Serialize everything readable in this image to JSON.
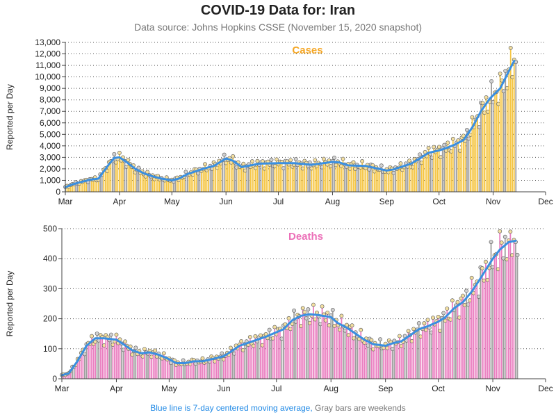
{
  "title": "COVID-19 Data for: Iran",
  "subtitle": "Data source: Johns Hopkins CSSE (November 15, 2020 snapshot)",
  "footer": {
    "blue_text": "Blue line is 7-day centered moving average,",
    "gray_text": "Gray bars are weekends"
  },
  "colors": {
    "cases_bar": "#f5c542",
    "deaths_bar": "#ea7ec0",
    "moving_avg": "#3a8fe0",
    "cases_title": "#f5a623",
    "deaths_title": "#ec6fb8",
    "weekend_bar": "#9e9e9e"
  },
  "chart_data": [
    {
      "type": "bar",
      "title": "Cases",
      "ylabel": "Reported per Day",
      "xlabel": "",
      "ylim": [
        0,
        13000
      ],
      "yticks": [
        "0",
        "1,000",
        "2,000",
        "3,000",
        "4,000",
        "5,000",
        "6,000",
        "7,000",
        "8,000",
        "9,000",
        "10,000",
        "11,000",
        "12,000",
        "13,000"
      ],
      "ytick_values": [
        0,
        1000,
        2000,
        3000,
        4000,
        5000,
        6000,
        7000,
        8000,
        9000,
        10000,
        11000,
        12000,
        13000
      ],
      "xticks": [
        "Mar",
        "Apr",
        "May",
        "Jun",
        "Jul",
        "Aug",
        "Sep",
        "Oct",
        "Nov",
        "Dec"
      ],
      "grid": "horizontal dotted",
      "x_range": [
        "2020-03-01",
        "2020-12-01"
      ],
      "moving_average_points": [
        [
          "2020-03-01",
          400
        ],
        [
          "2020-03-05",
          650
        ],
        [
          "2020-03-10",
          850
        ],
        [
          "2020-03-15",
          1050
        ],
        [
          "2020-03-20",
          1150
        ],
        [
          "2020-03-25",
          2200
        ],
        [
          "2020-03-29",
          2950
        ],
        [
          "2020-04-01",
          3000
        ],
        [
          "2020-04-05",
          2600
        ],
        [
          "2020-04-10",
          2000
        ],
        [
          "2020-04-15",
          1600
        ],
        [
          "2020-04-20",
          1350
        ],
        [
          "2020-04-25",
          1150
        ],
        [
          "2020-05-01",
          1000
        ],
        [
          "2020-05-05",
          1150
        ],
        [
          "2020-05-10",
          1550
        ],
        [
          "2020-05-15",
          1800
        ],
        [
          "2020-05-20",
          2050
        ],
        [
          "2020-05-25",
          2250
        ],
        [
          "2020-06-01",
          2900
        ],
        [
          "2020-06-05",
          2700
        ],
        [
          "2020-06-10",
          2150
        ],
        [
          "2020-06-15",
          2300
        ],
        [
          "2020-06-20",
          2450
        ],
        [
          "2020-07-01",
          2500
        ],
        [
          "2020-07-10",
          2500
        ],
        [
          "2020-07-20",
          2350
        ],
        [
          "2020-08-01",
          2600
        ],
        [
          "2020-08-05",
          2550
        ],
        [
          "2020-08-10",
          2300
        ],
        [
          "2020-08-20",
          2250
        ],
        [
          "2020-09-01",
          1850
        ],
        [
          "2020-09-05",
          1950
        ],
        [
          "2020-09-10",
          2200
        ],
        [
          "2020-09-15",
          2450
        ],
        [
          "2020-09-20",
          2900
        ],
        [
          "2020-09-25",
          3400
        ],
        [
          "2020-10-01",
          3600
        ],
        [
          "2020-10-05",
          3800
        ],
        [
          "2020-10-10",
          4100
        ],
        [
          "2020-10-15",
          4500
        ],
        [
          "2020-10-20",
          5600
        ],
        [
          "2020-10-25",
          7000
        ],
        [
          "2020-10-30",
          8100
        ],
        [
          "2020-11-05",
          9000
        ],
        [
          "2020-11-10",
          10500
        ],
        [
          "2020-11-13",
          11400
        ]
      ]
    },
    {
      "type": "bar",
      "title": "Deaths",
      "ylabel": "Reported per Day",
      "xlabel": "",
      "ylim": [
        0,
        500
      ],
      "yticks": [
        "0",
        "100",
        "200",
        "300",
        "400",
        "500"
      ],
      "ytick_values": [
        0,
        100,
        200,
        300,
        400,
        500
      ],
      "xticks": [
        "Mar",
        "Apr",
        "May",
        "Jun",
        "Jul",
        "Aug",
        "Sep",
        "Oct",
        "Nov",
        "Dec"
      ],
      "grid": "horizontal dotted",
      "x_range": [
        "2020-03-01",
        "2020-12-01"
      ],
      "moving_average_points": [
        [
          "2020-03-01",
          12
        ],
        [
          "2020-03-05",
          18
        ],
        [
          "2020-03-10",
          60
        ],
        [
          "2020-03-15",
          110
        ],
        [
          "2020-03-20",
          135
        ],
        [
          "2020-03-25",
          135
        ],
        [
          "2020-04-01",
          130
        ],
        [
          "2020-04-05",
          115
        ],
        [
          "2020-04-10",
          95
        ],
        [
          "2020-04-15",
          85
        ],
        [
          "2020-04-20",
          88
        ],
        [
          "2020-04-25",
          80
        ],
        [
          "2020-05-01",
          65
        ],
        [
          "2020-05-05",
          52
        ],
        [
          "2020-05-10",
          52
        ],
        [
          "2020-05-15",
          58
        ],
        [
          "2020-05-20",
          58
        ],
        [
          "2020-05-25",
          65
        ],
        [
          "2020-06-01",
          75
        ],
        [
          "2020-06-05",
          90
        ],
        [
          "2020-06-10",
          110
        ],
        [
          "2020-06-15",
          120
        ],
        [
          "2020-06-20",
          130
        ],
        [
          "2020-06-25",
          140
        ],
        [
          "2020-07-01",
          155
        ],
        [
          "2020-07-05",
          165
        ],
        [
          "2020-07-10",
          195
        ],
        [
          "2020-07-15",
          210
        ],
        [
          "2020-07-20",
          215
        ],
        [
          "2020-07-25",
          212
        ],
        [
          "2020-08-01",
          205
        ],
        [
          "2020-08-05",
          185
        ],
        [
          "2020-08-10",
          170
        ],
        [
          "2020-08-15",
          150
        ],
        [
          "2020-08-20",
          130
        ],
        [
          "2020-08-25",
          115
        ],
        [
          "2020-09-01",
          110
        ],
        [
          "2020-09-05",
          118
        ],
        [
          "2020-09-10",
          125
        ],
        [
          "2020-09-15",
          145
        ],
        [
          "2020-09-20",
          165
        ],
        [
          "2020-09-25",
          175
        ],
        [
          "2020-10-01",
          190
        ],
        [
          "2020-10-05",
          205
        ],
        [
          "2020-10-10",
          235
        ],
        [
          "2020-10-15",
          255
        ],
        [
          "2020-10-20",
          290
        ],
        [
          "2020-10-25",
          335
        ],
        [
          "2020-11-01",
          400
        ],
        [
          "2020-11-05",
          430
        ],
        [
          "2020-11-10",
          455
        ],
        [
          "2020-11-14",
          460
        ]
      ]
    }
  ]
}
